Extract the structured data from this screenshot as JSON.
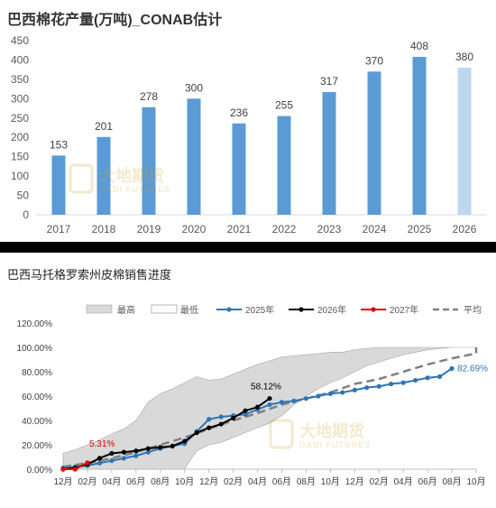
{
  "chart_data": [
    {
      "type": "bar",
      "title": "巴西棉花产量(万吨)_CONAB估计",
      "categories": [
        "2017",
        "2018",
        "2019",
        "2020",
        "2021",
        "2022",
        "2023",
        "2024",
        "2025",
        "2026"
      ],
      "values": [
        153,
        201,
        278,
        300,
        236,
        255,
        317,
        370,
        408,
        380
      ],
      "yticks": [
        "0",
        "50",
        "100",
        "150",
        "200",
        "250",
        "300",
        "350",
        "400",
        "450"
      ],
      "ylim": [
        0,
        450
      ],
      "colors": {
        "bar": "#5B9BD5",
        "highlight": "#BDD7EE"
      },
      "highlight_index": 9,
      "grid": false,
      "watermark": {
        "cn": "大地期货",
        "en": "DADI FUTURES"
      }
    },
    {
      "type": "line",
      "title": "巴西马托格罗索州皮棉销售进度",
      "xticks": [
        "12月",
        "02月",
        "04月",
        "06月",
        "08月",
        "10月",
        "12月",
        "02月",
        "04月",
        "06月",
        "08月",
        "10月",
        "12月",
        "02月",
        "04月",
        "06月",
        "08月",
        "10月"
      ],
      "yticks": [
        "0.00%",
        "20.00%",
        "40.00%",
        "60.00%",
        "80.00%",
        "100.00%",
        "120.00%"
      ],
      "ylim": [
        0,
        120
      ],
      "legend_position": "top",
      "legend": {
        "max": "最高",
        "min": "最低",
        "y2025": "2025年",
        "y2026": "2026年",
        "y2027": "2027年",
        "avg": "平均"
      },
      "colors": {
        "y2025": "#2E75B6",
        "y2026": "#000000",
        "y2027": "#E00000",
        "avg": "#808080",
        "range_fill": "#D9D9D9",
        "range_edge": "#A6A6A6"
      },
      "band_upper": [
        [
          0,
          13
        ],
        [
          1,
          16
        ],
        [
          2,
          20
        ],
        [
          3,
          24
        ],
        [
          4,
          29
        ],
        [
          5,
          33
        ],
        [
          6,
          40
        ],
        [
          7,
          55
        ],
        [
          8,
          62
        ],
        [
          9,
          66
        ],
        [
          10,
          71
        ],
        [
          11,
          76
        ],
        [
          12,
          73
        ],
        [
          13,
          74
        ],
        [
          14,
          78
        ],
        [
          15,
          82
        ],
        [
          16,
          86
        ],
        [
          17,
          89
        ],
        [
          18,
          92
        ],
        [
          19,
          93
        ],
        [
          20,
          94
        ],
        [
          21,
          95
        ],
        [
          22,
          96
        ],
        [
          23,
          96
        ],
        [
          24,
          98
        ],
        [
          25,
          99
        ],
        [
          26,
          100
        ],
        [
          27,
          100
        ],
        [
          28,
          100
        ],
        [
          29,
          100
        ],
        [
          30,
          100
        ],
        [
          31,
          100
        ],
        [
          32,
          100
        ],
        [
          33,
          100
        ],
        [
          34,
          100
        ]
      ],
      "band_lower": [
        [
          0,
          0
        ],
        [
          1,
          0
        ],
        [
          2,
          0
        ],
        [
          3,
          0
        ],
        [
          4,
          0
        ],
        [
          5,
          0
        ],
        [
          6,
          0
        ],
        [
          7,
          0
        ],
        [
          8,
          0
        ],
        [
          9,
          0
        ],
        [
          10,
          0
        ],
        [
          10.5,
          8
        ],
        [
          11,
          15
        ],
        [
          12,
          20
        ],
        [
          13,
          22
        ],
        [
          14,
          26
        ],
        [
          15,
          30
        ],
        [
          16,
          34
        ],
        [
          17,
          38
        ],
        [
          18,
          44
        ],
        [
          19,
          53
        ],
        [
          20,
          60
        ],
        [
          21,
          66
        ],
        [
          22,
          71
        ],
        [
          23,
          75
        ],
        [
          24,
          80
        ],
        [
          25,
          85
        ],
        [
          26,
          88
        ],
        [
          27,
          91
        ],
        [
          28,
          94
        ],
        [
          29,
          96
        ],
        [
          30,
          98
        ],
        [
          31,
          99
        ],
        [
          32,
          100
        ],
        [
          33,
          100
        ],
        [
          34,
          100
        ]
      ],
      "series_2025": [
        [
          0,
          1
        ],
        [
          1,
          2
        ],
        [
          2,
          3
        ],
        [
          3,
          5
        ],
        [
          4,
          7
        ],
        [
          5,
          9
        ],
        [
          6,
          11
        ],
        [
          7,
          14
        ],
        [
          8,
          17
        ],
        [
          9,
          19
        ],
        [
          10,
          21
        ],
        [
          11,
          31
        ],
        [
          12,
          41
        ],
        [
          13,
          43
        ],
        [
          14,
          44
        ],
        [
          15,
          45
        ],
        [
          16,
          49
        ],
        [
          17,
          53
        ],
        [
          18,
          55
        ],
        [
          19,
          56
        ],
        [
          20,
          58
        ],
        [
          21,
          60
        ],
        [
          22,
          62
        ],
        [
          23,
          63
        ],
        [
          24,
          65
        ],
        [
          25,
          67
        ],
        [
          26,
          68
        ],
        [
          27,
          70
        ],
        [
          28,
          71
        ],
        [
          29,
          73
        ],
        [
          30,
          75
        ],
        [
          31,
          76
        ],
        [
          32,
          82.69
        ]
      ],
      "series_2026": [
        [
          0,
          0
        ],
        [
          1,
          1
        ],
        [
          2,
          4
        ],
        [
          3,
          9
        ],
        [
          4,
          13
        ],
        [
          5,
          14
        ],
        [
          6,
          15
        ],
        [
          7,
          17
        ],
        [
          8,
          18
        ],
        [
          9,
          19
        ],
        [
          10,
          23
        ],
        [
          11,
          30
        ],
        [
          12,
          34
        ],
        [
          13,
          37
        ],
        [
          14,
          42
        ],
        [
          15,
          48
        ],
        [
          16,
          51
        ],
        [
          17,
          58.12
        ]
      ],
      "series_2027": [
        [
          0,
          0
        ],
        [
          1,
          0
        ],
        [
          2,
          5.31
        ]
      ],
      "series_avg": [
        [
          0,
          2
        ],
        [
          2,
          5
        ],
        [
          4,
          9
        ],
        [
          6,
          14
        ],
        [
          8,
          20
        ],
        [
          10,
          26
        ],
        [
          12,
          33
        ],
        [
          14,
          40
        ],
        [
          16,
          46
        ],
        [
          18,
          53
        ],
        [
          20,
          58
        ],
        [
          22,
          63
        ],
        [
          24,
          70
        ],
        [
          26,
          74
        ],
        [
          28,
          80
        ],
        [
          30,
          86
        ],
        [
          32,
          91
        ],
        [
          34,
          95
        ],
        [
          36,
          97
        ],
        [
          38,
          98
        ],
        [
          40,
          99
        ],
        [
          42,
          100
        ]
      ],
      "annotations": {
        "y2025_end": "82.69%",
        "y2026_end": "58.12%",
        "y2027_end": "5.31%"
      },
      "watermark": {
        "cn": "大地期货",
        "en": "DADI FUTURES"
      }
    }
  ]
}
